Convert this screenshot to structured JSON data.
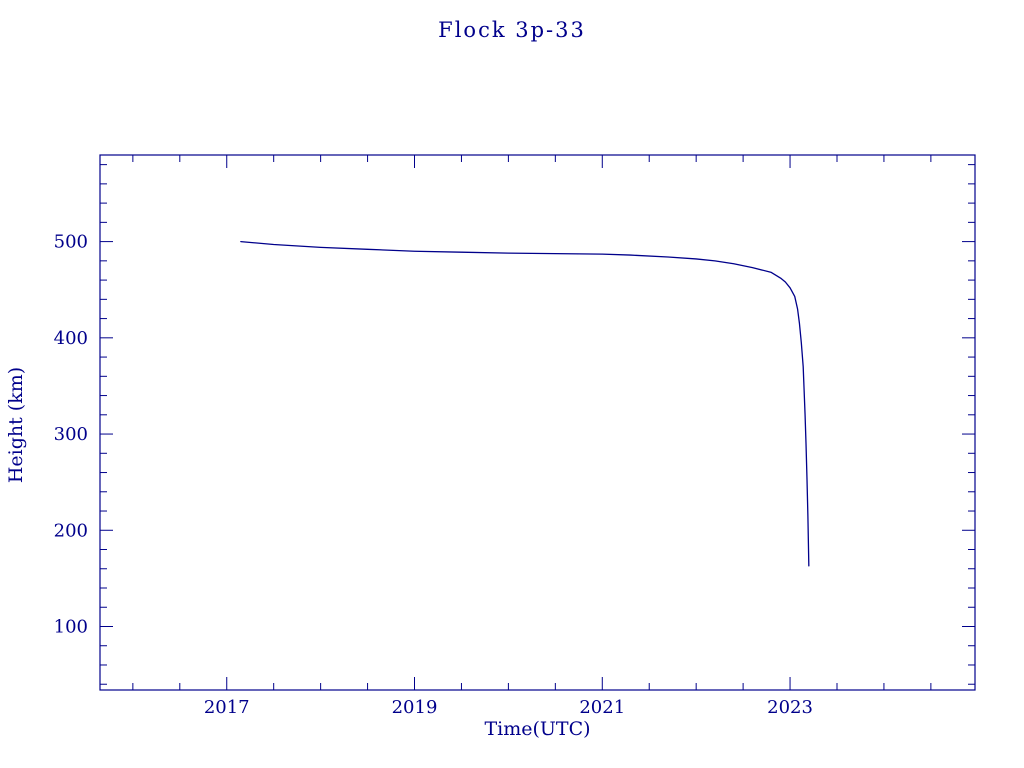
{
  "chart_data": {
    "type": "line",
    "title": "Flock 3p-33",
    "xlabel": "Time(UTC)",
    "ylabel": "Height (km)",
    "xlim": [
      2015.65,
      2024.97
    ],
    "ylim": [
      34,
      590
    ],
    "x_major_ticks": [
      2017,
      2019,
      2021,
      2023
    ],
    "x_major_tick_labels": [
      "2017",
      "2019",
      "2021",
      "2023"
    ],
    "x_minor_step": 0.5,
    "y_major_ticks": [
      100,
      200,
      300,
      400,
      500
    ],
    "y_major_tick_labels": [
      "100",
      "200",
      "300",
      "400",
      "500"
    ],
    "y_minor_step": 20,
    "grid": false,
    "legend": "none",
    "line_color": "#00008B",
    "axis_color": "#00008B",
    "background_color": "#ffffff",
    "series": [
      {
        "name": "height_km",
        "x": [
          2017.15,
          2017.5,
          2018.0,
          2018.5,
          2019.0,
          2019.5,
          2020.0,
          2020.5,
          2021.0,
          2021.3,
          2021.7,
          2022.0,
          2022.2,
          2022.4,
          2022.6,
          2022.8,
          2022.85,
          2022.9,
          2022.95,
          2023.0,
          2023.05,
          2023.08,
          2023.1,
          2023.12,
          2023.14,
          2023.15,
          2023.16,
          2023.17,
          2023.18,
          2023.19,
          2023.2
        ],
        "y": [
          500,
          497,
          494,
          492,
          490,
          489,
          488,
          487.5,
          487,
          486,
          484,
          482,
          480,
          477,
          473,
          468,
          465,
          462,
          458,
          452,
          443,
          430,
          415,
          395,
          370,
          345,
          320,
          290,
          255,
          215,
          163
        ]
      }
    ]
  }
}
